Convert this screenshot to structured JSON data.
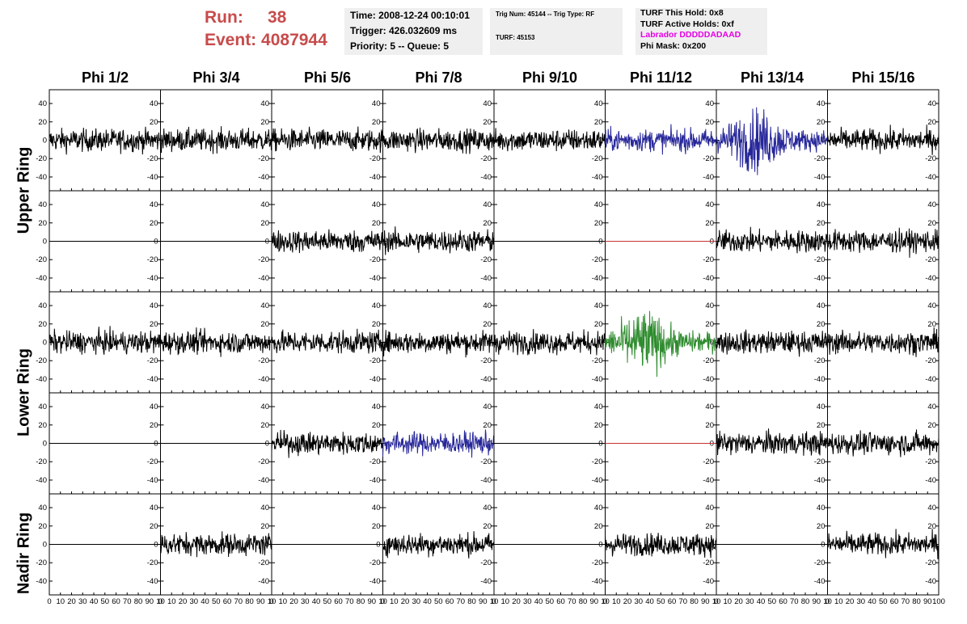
{
  "header": {
    "run_label": "Run:",
    "run_value": "38",
    "event_label": "Event:",
    "event_value": "4087944",
    "time": "Time: 2008-12-24 00:10:01",
    "trigger": "Trigger: 426.032609 ms",
    "priority": "Priority: 5 -- Queue: 5",
    "trig_num": "Trig Num: 45144 -- Trig Type: RF",
    "turf": "TURF: 45153",
    "turf_this_hold": "TURF This Hold: 0x8",
    "turf_active_holds": "TURF Active Holds: 0xf",
    "labrador": "Labrador DDDDDADAAD",
    "phi_mask": "Phi Mask: 0x200"
  },
  "colors": {
    "run": "#c84b4b",
    "labrador": "#e600e6",
    "trace_default": "#000000",
    "trace_blue": "#27279a",
    "trace_green": "#2e8b2e",
    "trace_flat_red": "#c83232"
  },
  "chart_data": {
    "type": "line",
    "columns": [
      "Phi 1/2",
      "Phi 3/4",
      "Phi 5/6",
      "Phi 7/8",
      "Phi 9/10",
      "Phi 11/12",
      "Phi 13/14",
      "Phi 15/16"
    ],
    "rows": [
      "Upper Ring",
      "Lower Ring",
      "Nadir Ring"
    ],
    "xlim": [
      0,
      100
    ],
    "ylim": [
      -55,
      55
    ],
    "yticks": [
      -40,
      -20,
      0,
      20,
      40
    ],
    "xtick_labels": [
      "0",
      "10",
      "20",
      "30",
      "40",
      "50",
      "60",
      "70",
      "80",
      "90",
      "10"
    ],
    "xtick_labels_last": [
      "0",
      "10",
      "20",
      "30",
      "40",
      "50",
      "60",
      "70",
      "80",
      "90",
      "100"
    ],
    "panels": [
      [
        "noise",
        "noise",
        "noise",
        "noise",
        "noise",
        "noise-blue",
        "noise-blue-big",
        "noise"
      ],
      [
        "flat",
        "flat",
        "noise",
        "noise",
        "flat",
        "flat-red",
        "noise",
        "noise"
      ],
      [
        "noise",
        "noise",
        "noise",
        "noise",
        "noise",
        "noise-green-big",
        "noise",
        "noise"
      ],
      [
        "flat",
        "flat",
        "noise",
        "noise-blue",
        "flat",
        "flat-red",
        "noise",
        "noise"
      ],
      [
        "flat",
        "noise",
        "flat",
        "noise",
        "flat",
        "noise",
        "flat",
        "noise"
      ]
    ]
  }
}
